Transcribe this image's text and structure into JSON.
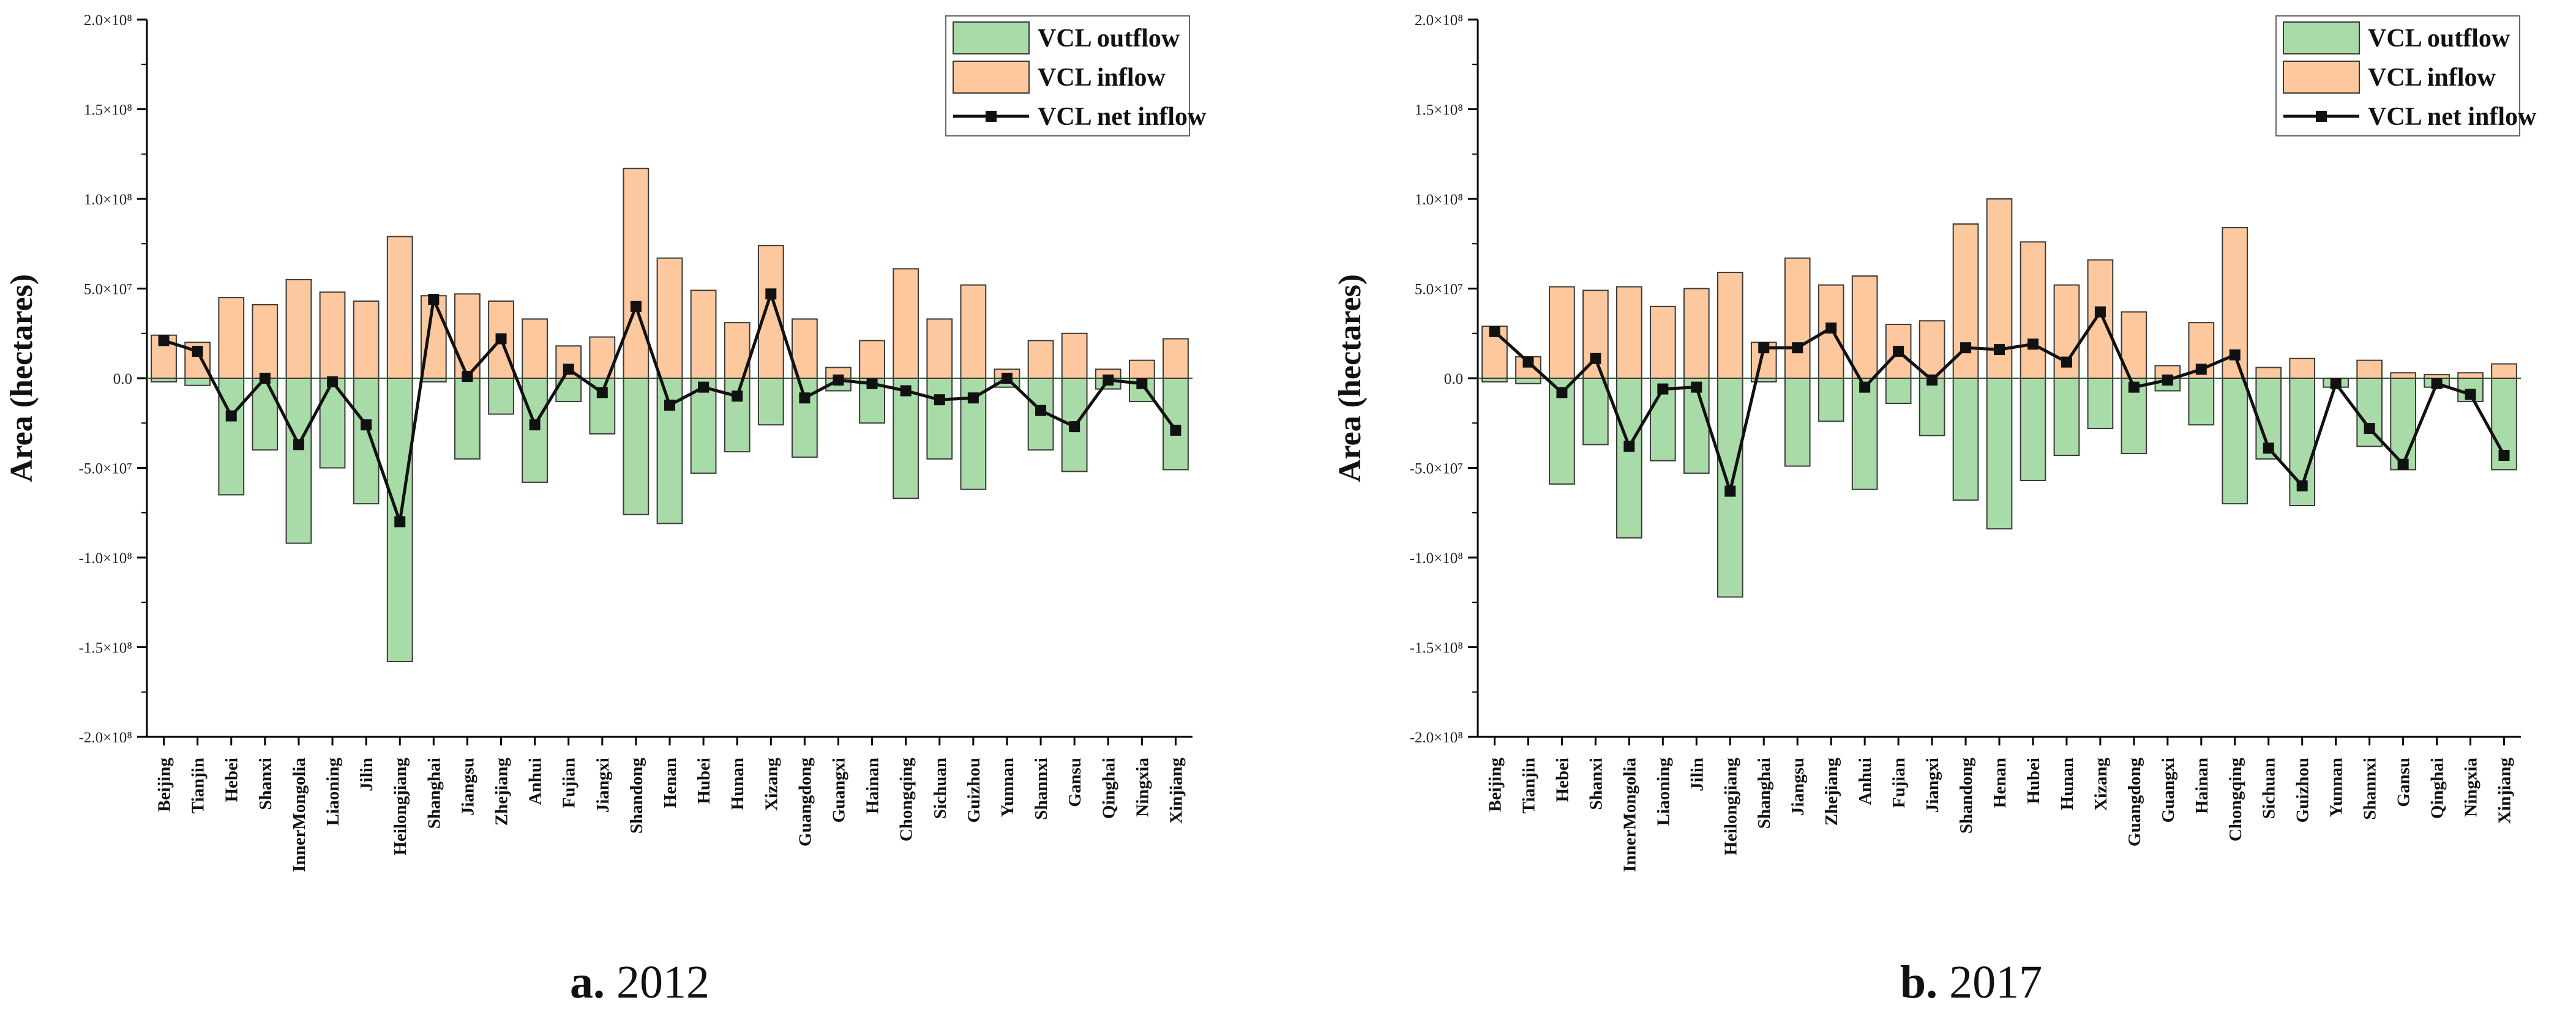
{
  "chart_data": [
    {
      "type": "bar",
      "title": "",
      "caption_prefix": "a.",
      "caption_year": "2012",
      "xlabel": "",
      "ylabel": "Area (hectares)",
      "ylim": [
        -200000000,
        200000000
      ],
      "yticks": [
        -200000000,
        -150000000,
        -100000000,
        -50000000,
        0,
        50000000,
        100000000,
        150000000,
        200000000
      ],
      "ytick_labels": [
        "-2.0×10⁸",
        "-1.5×10⁸",
        "-1.0×10⁸",
        "-5.0×10⁷",
        "0.0",
        "5.0×10⁷",
        "1.0×10⁸",
        "1.5×10⁸",
        "2.0×10⁸"
      ],
      "legend": [
        "VCL outflow",
        "VCL inflow",
        "VCL net inflow"
      ],
      "categories": [
        "Beijing",
        "Tianjin",
        "Hebei",
        "Shanxi",
        "InnerMongolia",
        "Liaoning",
        "Jilin",
        "Heilongjiang",
        "Shanghai",
        "Jiangsu",
        "Zhejiang",
        "Anhui",
        "Fujian",
        "Jiangxi",
        "Shandong",
        "Henan",
        "Hubei",
        "Hunan",
        "Xizang",
        "Guangdong",
        "Guangxi",
        "Hainan",
        "Chongqing",
        "Sichuan",
        "Guizhou",
        "Yunnan",
        "Shannxi",
        "Gansu",
        "Qinghai",
        "Ningxia",
        "Xinjiang"
      ],
      "series": [
        {
          "name": "VCL outflow",
          "values": [
            -2000000,
            -4000000,
            -65000000,
            -40000000,
            -92000000,
            -50000000,
            -70000000,
            -158000000,
            -2000000,
            -45000000,
            -20000000,
            -58000000,
            -13000000,
            -31000000,
            -76000000,
            -81000000,
            -53000000,
            -41000000,
            -26000000,
            -44000000,
            -7000000,
            -25000000,
            -67000000,
            -45000000,
            -62000000,
            -5000000,
            -40000000,
            -52000000,
            -6000000,
            -13000000,
            -51000000
          ]
        },
        {
          "name": "VCL inflow",
          "values": [
            24000000,
            20000000,
            45000000,
            41000000,
            55000000,
            48000000,
            43000000,
            79000000,
            46000000,
            47000000,
            43000000,
            33000000,
            18000000,
            23000000,
            117000000,
            67000000,
            49000000,
            31000000,
            74000000,
            33000000,
            6000000,
            21000000,
            61000000,
            33000000,
            52000000,
            5000000,
            21000000,
            25000000,
            5000000,
            10000000,
            22000000
          ]
        },
        {
          "name": "VCL net inflow",
          "values": [
            21000000,
            15000000,
            -21000000,
            0,
            -37000000,
            -2000000,
            -26000000,
            -80000000,
            44000000,
            1000000,
            22000000,
            -26000000,
            5000000,
            -8000000,
            40000000,
            -15000000,
            -5000000,
            -10000000,
            47000000,
            -11000000,
            -1000000,
            -3000000,
            -7000000,
            -12000000,
            -11000000,
            0,
            -18000000,
            -27000000,
            -1000000,
            -3000000,
            -29000000
          ]
        }
      ]
    },
    {
      "type": "bar",
      "title": "",
      "caption_prefix": "b.",
      "caption_year": "2017",
      "xlabel": "",
      "ylabel": "Area (hectares)",
      "ylim": [
        -200000000,
        200000000
      ],
      "yticks": [
        -200000000,
        -150000000,
        -100000000,
        -50000000,
        0,
        50000000,
        100000000,
        150000000,
        200000000
      ],
      "ytick_labels": [
        "-2.0×10⁸",
        "-1.5×10⁸",
        "-1.0×10⁸",
        "-5.0×10⁷",
        "0.0",
        "5.0×10⁷",
        "1.0×10⁸",
        "1.5×10⁸",
        "2.0×10⁸"
      ],
      "legend": [
        "VCL outflow",
        "VCL inflow",
        "VCL net inflow"
      ],
      "categories": [
        "Beijing",
        "Tianjin",
        "Hebei",
        "Shanxi",
        "InnerMongolia",
        "Liaoning",
        "Jilin",
        "Heilongjiang",
        "Shanghai",
        "Jiangsu",
        "Zhejiang",
        "Anhui",
        "Fujian",
        "Jiangxi",
        "Shandong",
        "Henan",
        "Hubei",
        "Hunan",
        "Xizang",
        "Guangdong",
        "Guangxi",
        "Hainan",
        "Chongqing",
        "Sichuan",
        "Guizhou",
        "Yunnan",
        "Shannxi",
        "Gansu",
        "Qinghai",
        "Ningxia",
        "Xinjiang"
      ],
      "series": [
        {
          "name": "VCL outflow",
          "values": [
            -2000000,
            -3000000,
            -59000000,
            -37000000,
            -89000000,
            -46000000,
            -53000000,
            -122000000,
            -2000000,
            -49000000,
            -24000000,
            -62000000,
            -14000000,
            -32000000,
            -68000000,
            -84000000,
            -57000000,
            -43000000,
            -28000000,
            -42000000,
            -7000000,
            -26000000,
            -70000000,
            -45000000,
            -71000000,
            -5000000,
            -38000000,
            -51000000,
            -5000000,
            -13000000,
            -51000000
          ]
        },
        {
          "name": "VCL inflow",
          "values": [
            29000000,
            12000000,
            51000000,
            49000000,
            51000000,
            40000000,
            50000000,
            59000000,
            20000000,
            67000000,
            52000000,
            57000000,
            30000000,
            32000000,
            86000000,
            100000000,
            76000000,
            52000000,
            66000000,
            37000000,
            7000000,
            31000000,
            84000000,
            6000000,
            11000000,
            0,
            10000000,
            3000000,
            2000000,
            3000000,
            8000000
          ]
        },
        {
          "name": "VCL net inflow",
          "values": [
            26000000,
            9000000,
            -8000000,
            11000000,
            -38000000,
            -6000000,
            -5000000,
            -63000000,
            17000000,
            17000000,
            28000000,
            -5000000,
            15000000,
            -1000000,
            17000000,
            16000000,
            19000000,
            9000000,
            37000000,
            -5000000,
            -1000000,
            5000000,
            13000000,
            -39000000,
            -60000000,
            -3000000,
            -28000000,
            -48000000,
            -3000000,
            -9000000,
            -43000000
          ]
        }
      ]
    }
  ]
}
